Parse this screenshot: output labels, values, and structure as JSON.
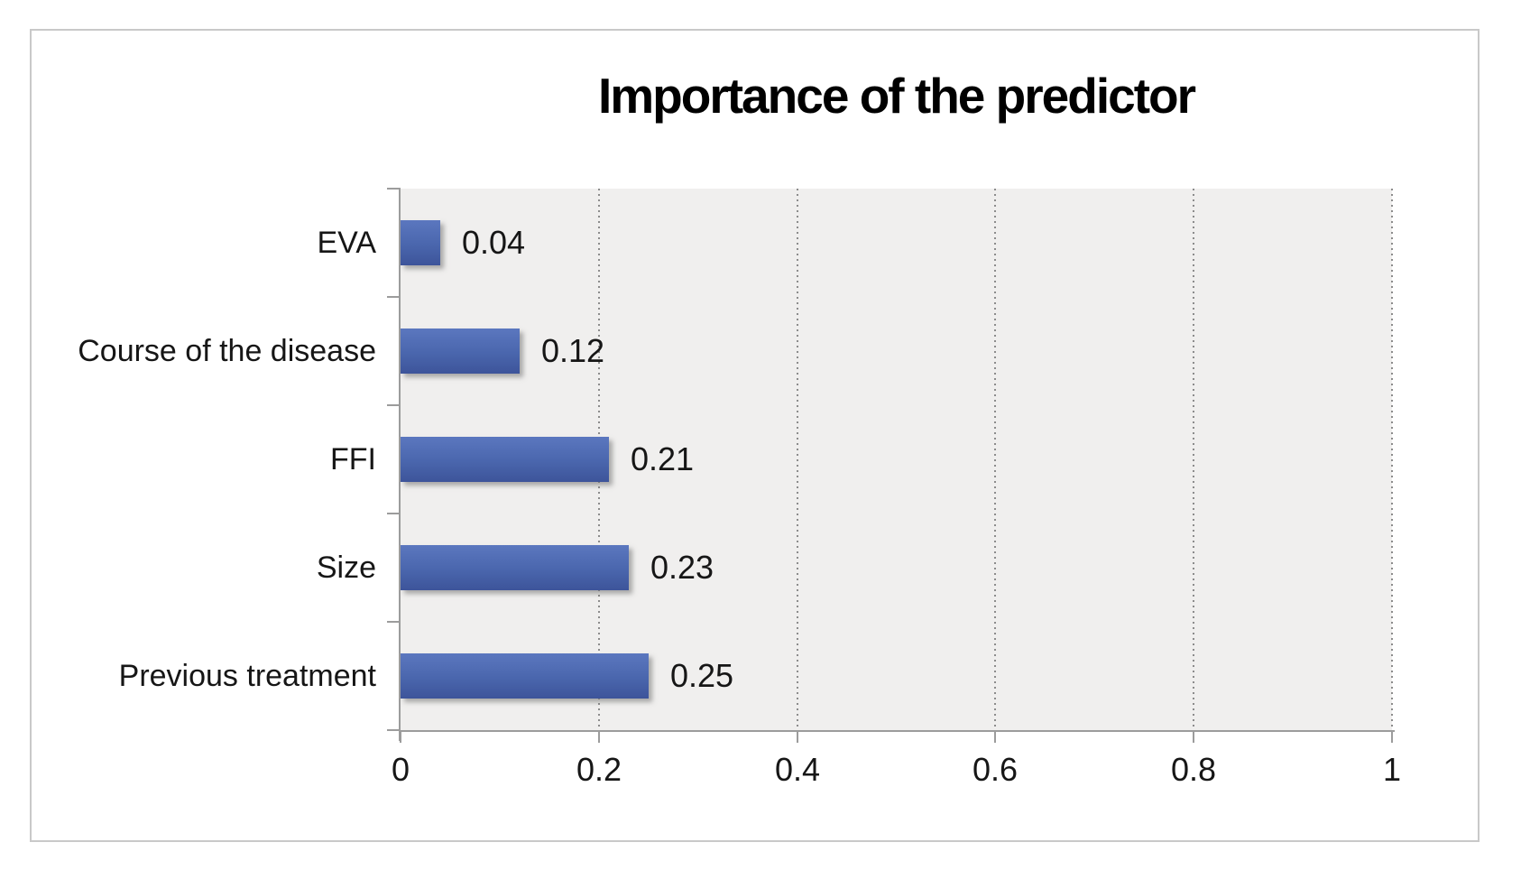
{
  "chart_data": {
    "type": "bar",
    "orientation": "horizontal",
    "title": "Importance of the predictor",
    "categories": [
      "EVA",
      "Course of the disease",
      "FFI",
      "Size",
      "Previous treatment"
    ],
    "values": [
      0.04,
      0.12,
      0.21,
      0.23,
      0.25
    ],
    "data_labels": [
      "0.04",
      "0.12",
      "0.21",
      "0.23",
      "0.25"
    ],
    "xlabel": "",
    "ylabel": "",
    "xlim": [
      0,
      1
    ],
    "x_ticks": [
      0,
      0.2,
      0.4,
      0.6,
      0.8,
      1
    ],
    "x_tick_labels": [
      "0",
      "0.2",
      "0.4",
      "0.6",
      "0.8",
      "1"
    ],
    "grid": "vertical-dotted",
    "legend": "none",
    "colors": {
      "bar_top": "#5b77bf",
      "bar_mid": "#4a66ad",
      "bar_bottom": "#3d549a",
      "plot_background": "#f0efee",
      "gridline": "#8c8c8c",
      "axis": "#9c9c9c",
      "frame_border": "#c9c9c9",
      "text": "#161616",
      "page_background": "#ffffff"
    }
  }
}
